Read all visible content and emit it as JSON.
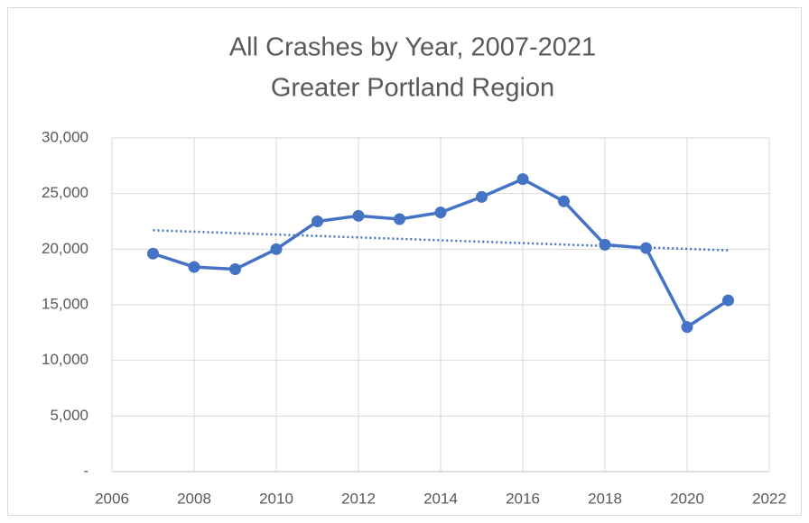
{
  "chart_data": {
    "type": "line",
    "title": "All Crashes by Year, 2007-2021",
    "subtitle": "Greater Portland Region",
    "x": [
      2007,
      2008,
      2009,
      2010,
      2011,
      2012,
      2013,
      2014,
      2015,
      2016,
      2017,
      2018,
      2019,
      2020,
      2021
    ],
    "series": [
      {
        "color": "#4472c4",
        "values": [
          19600,
          18400,
          18200,
          20000,
          22500,
          23000,
          22700,
          23300,
          24700,
          26300,
          24300,
          20400,
          20100,
          13000,
          15400
        ]
      }
    ],
    "trendline": {
      "x": [
        2007,
        2021
      ],
      "values": [
        21700,
        19900
      ],
      "color": "#4472c4",
      "dotted": true
    },
    "xlim": [
      2006,
      2022
    ],
    "xticks": [
      2006,
      2008,
      2010,
      2012,
      2014,
      2016,
      2018,
      2020,
      2022
    ],
    "ylim": [
      0,
      30000
    ],
    "yticks": [
      {
        "value": 0,
        "label": "-"
      },
      {
        "value": 5000,
        "label": "5,000"
      },
      {
        "value": 10000,
        "label": "10,000"
      },
      {
        "value": 15000,
        "label": "15,000"
      },
      {
        "value": 20000,
        "label": "20,000"
      },
      {
        "value": 25000,
        "label": "25,000"
      },
      {
        "value": 30000,
        "label": "30,000"
      }
    ],
    "grid": true,
    "markers": true
  }
}
